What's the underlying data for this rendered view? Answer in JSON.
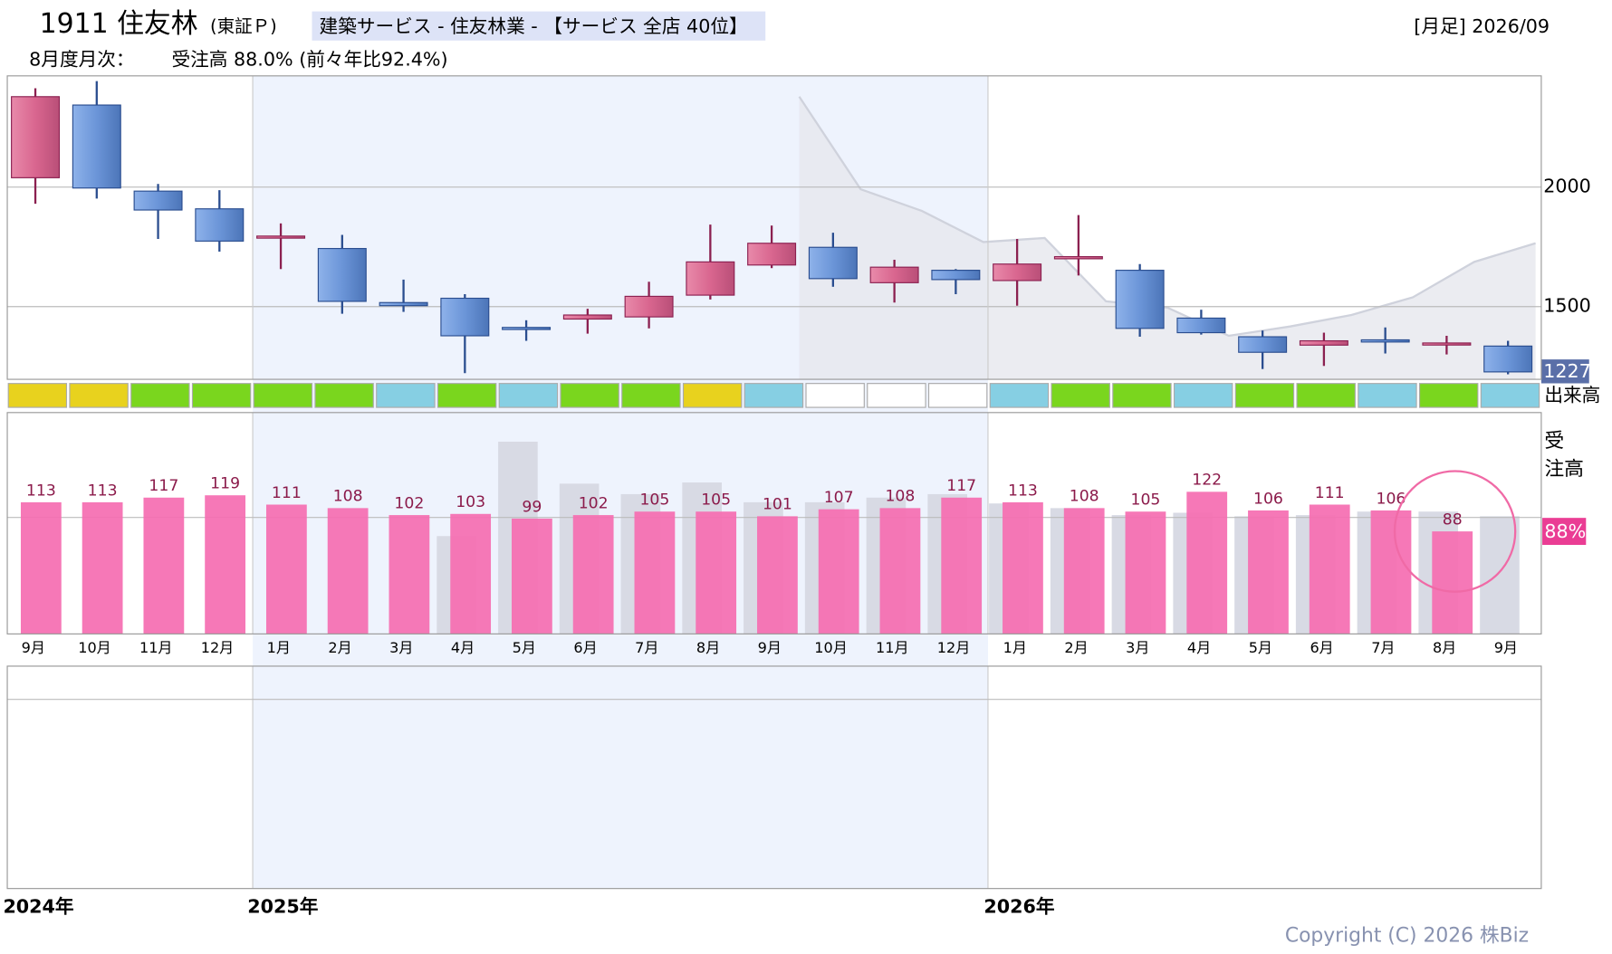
{
  "header": {
    "code_name": "1911 住友林",
    "market": "(東証Ｐ)",
    "sector": "建築サービス - 住友林業 - 【サービス 全店 40位】",
    "period": "[月足] 2026/09",
    "monthly_label": "8月度月次：",
    "monthly_value": "受注高 88.0% (前々年比92.4%)"
  },
  "chart_data": [
    {
      "type": "candlestick",
      "open": [
        2039,
        2343,
        1983,
        1909,
        1791,
        1743,
        1517,
        1535,
        1413,
        1448,
        1457,
        1548,
        1674,
        1748,
        1600,
        1652,
        1609,
        1700,
        1652,
        1452,
        1374,
        1339,
        1361,
        1343,
        1335
      ],
      "high": [
        2413,
        2443,
        2013,
        1987,
        1848,
        1800,
        1613,
        1552,
        1443,
        1491,
        1604,
        1843,
        1839,
        1809,
        1696,
        1657,
        1783,
        1883,
        1678,
        1487,
        1400,
        1391,
        1413,
        1378,
        1357
      ],
      "low": [
        1930,
        1952,
        1783,
        1730,
        1657,
        1470,
        1478,
        1222,
        1357,
        1387,
        1409,
        1530,
        1661,
        1583,
        1517,
        1552,
        1504,
        1630,
        1374,
        1383,
        1239,
        1252,
        1304,
        1300,
        1217
      ],
      "close": [
        2378,
        1996,
        1904,
        1774,
        1795,
        1522,
        1504,
        1378,
        1409,
        1465,
        1543,
        1687,
        1765,
        1617,
        1665,
        1613,
        1678,
        1709,
        1409,
        1391,
        1309,
        1357,
        1352,
        1348,
        1227
      ],
      "up_color": "#d9668f",
      "down_color": "#6b95d8",
      "trend": {
        "color": "#cfd2dc",
        "values": [
          null,
          null,
          null,
          null,
          null,
          null,
          null,
          null,
          null,
          null,
          null,
          null,
          2378,
          1991,
          1900,
          1770,
          1787,
          1522,
          1496,
          1378,
          1417,
          1465,
          1539,
          1687,
          1765
        ]
      },
      "ylim": [
        1196,
        2465
      ],
      "yticks": [
        1500,
        2000
      ],
      "grid": true
    },
    {
      "type": "color_strip",
      "label": "出来高",
      "colors": [
        "#e8d21e",
        "#e8d21e",
        "#7ad61e",
        "#7ad61e",
        "#7ad61e",
        "#7ad61e",
        "#86cfe3",
        "#7ad61e",
        "#86cfe3",
        "#7ad61e",
        "#7ad61e",
        "#e8d21e",
        "#86cfe3",
        "#ffffff",
        "#ffffff",
        "#ffffff",
        "#86cfe3",
        "#7ad61e",
        "#7ad61e",
        "#86cfe3",
        "#7ad61e",
        "#7ad61e",
        "#86cfe3",
        "#7ad61e",
        "#86cfe3"
      ]
    },
    {
      "type": "bar",
      "ylabel_lines": [
        "受",
        "注高"
      ],
      "last_label": "88%",
      "categories": [
        "9月",
        "10月",
        "11月",
        "12月",
        "1月",
        "2月",
        "3月",
        "4月",
        "5月",
        "6月",
        "7月",
        "8月",
        "9月",
        "10月",
        "11月",
        "12月",
        "1月",
        "2月",
        "3月",
        "4月",
        "5月",
        "6月",
        "7月",
        "8月",
        "9月"
      ],
      "series": [
        {
          "color": "#d8dae4",
          "values": [
            null,
            null,
            null,
            null,
            null,
            null,
            null,
            84,
            165,
            129,
            120,
            130,
            113,
            113,
            117,
            120,
            112,
            108,
            102,
            104,
            101,
            102,
            105,
            105,
            101
          ]
        },
        {
          "color": "#f56eb1",
          "values": [
            113,
            113,
            117,
            119,
            111,
            108,
            102,
            103,
            99,
            102,
            105,
            105,
            101,
            107,
            108,
            117,
            113,
            108,
            105,
            122,
            106,
            111,
            106,
            88,
            null
          ]
        }
      ],
      "ylim": [
        0,
        190
      ],
      "yticks": [
        100
      ],
      "grid": true
    }
  ],
  "year_labels": [
    "2024年",
    "2025年",
    "2026年"
  ],
  "copyright": "Copyright (C) 2026 株Biz"
}
